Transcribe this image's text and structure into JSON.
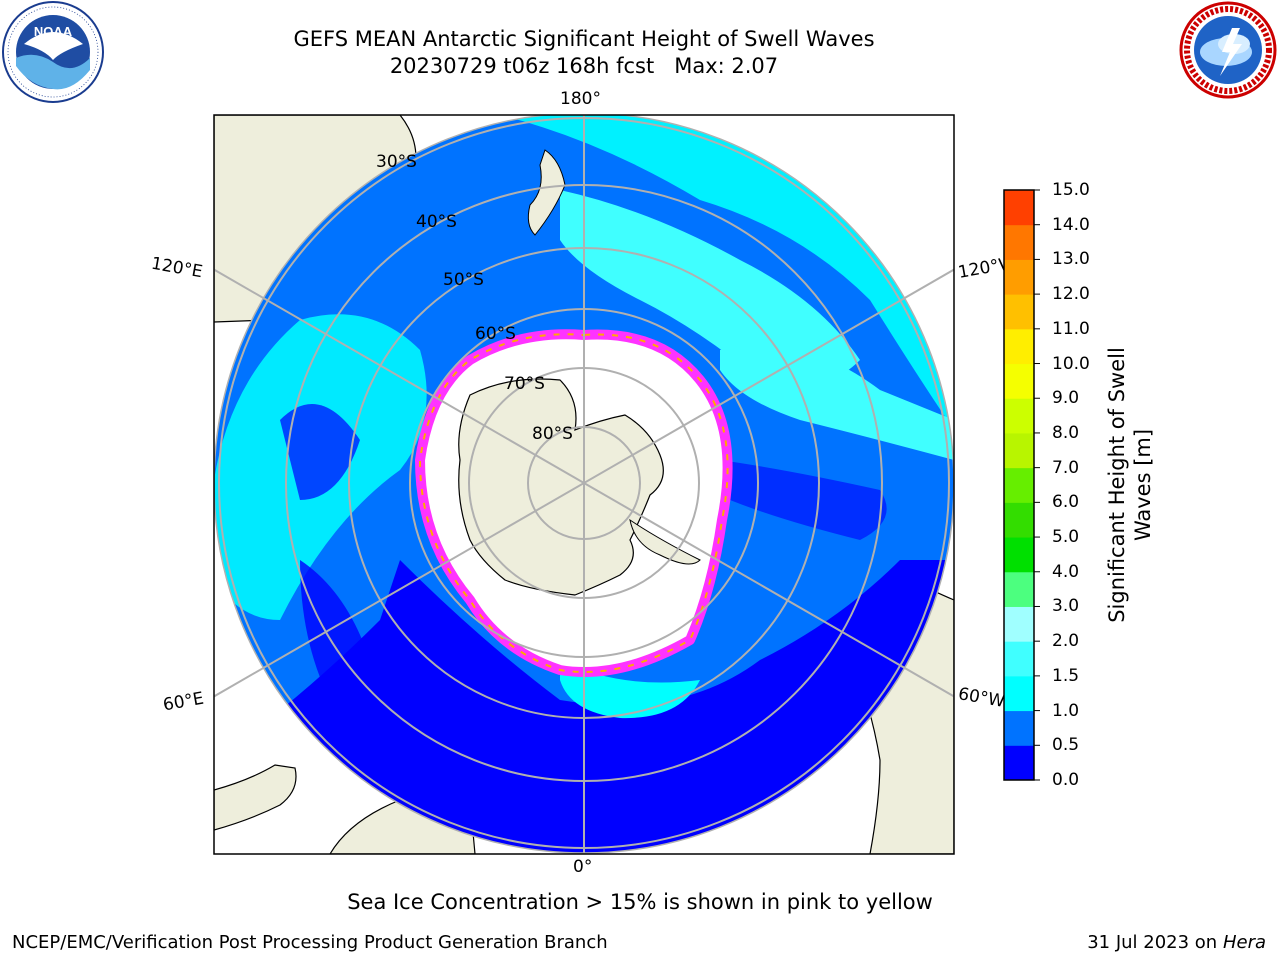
{
  "title": {
    "line1": "GEFS MEAN Antarctic Significant Height of Swell Waves",
    "line2": "20230729 t06z 168h fcst   Max: 2.07"
  },
  "logos": {
    "noaa": {
      "center_text": "NOAA",
      "ring_text": "NATIONAL OCEANIC AND ATMOSPHERIC ADMINISTRATION · U.S. DEPARTMENT OF COMMERCE"
    },
    "nws": {
      "ring_text": "NATIONAL WEATHER SERVICE"
    }
  },
  "map": {
    "projection": "south-polar-stereographic",
    "longitude_labels": {
      "top": "180°",
      "bottom": "0°",
      "upper_left": "120°E",
      "lower_left": "60°E",
      "upper_right": "120°W",
      "lower_right": "60°W"
    },
    "latitude_labels": [
      "30°S",
      "40°S",
      "50°S",
      "60°S",
      "70°S",
      "80°S"
    ],
    "colors": {
      "land": "#eeeedc",
      "ice": "#ffffff",
      "ice_edge_colors": [
        "#ff33ff",
        "#ffaa00",
        "#ffd700"
      ],
      "grid": "#b0b0b0",
      "coast": "#000000"
    }
  },
  "colorbar": {
    "label": "Significant Height of Swell Waves [m]",
    "label_lines": [
      "Significant Height of Swell",
      "Waves [m]"
    ],
    "ticks": [
      "0.0",
      "0.5",
      "1.0",
      "1.5",
      "2.0",
      "3.0",
      "4.0",
      "5.0",
      "6.0",
      "7.0",
      "8.0",
      "9.0",
      "10.0",
      "11.0",
      "12.0",
      "13.0",
      "14.0",
      "15.0"
    ],
    "colors": [
      "#0000ff",
      "#0073ff",
      "#00ffff",
      "#40ffff",
      "#a0ffff",
      "#4cff7f",
      "#00e000",
      "#33dd00",
      "#66ee00",
      "#b8f500",
      "#ccff00",
      "#f5ff00",
      "#ffee00",
      "#ffc000",
      "#ff9d00",
      "#ff7700",
      "#ff4000",
      "#ff0000"
    ]
  },
  "chart_data": {
    "type": "heatmap",
    "variable": "Significant Height of Swell Waves",
    "units": "m",
    "scale": {
      "min": 0.0,
      "max": 15.0,
      "levels": [
        0.0,
        0.5,
        1.0,
        1.5,
        2.0,
        3.0,
        4.0,
        5.0,
        6.0,
        7.0,
        8.0,
        9.0,
        10.0,
        11.0,
        12.0,
        13.0,
        14.0,
        15.0
      ]
    },
    "field_max": 2.07,
    "run": "20230729 t06z",
    "forecast_hour": "168h"
  },
  "note": "Sea Ice Concentration > 15% is shown in pink to yellow",
  "footer": {
    "left": "NCEP/EMC/Verification Post Processing Product Generation Branch",
    "date": "31 Jul 2023 on ",
    "host": "Hera"
  }
}
